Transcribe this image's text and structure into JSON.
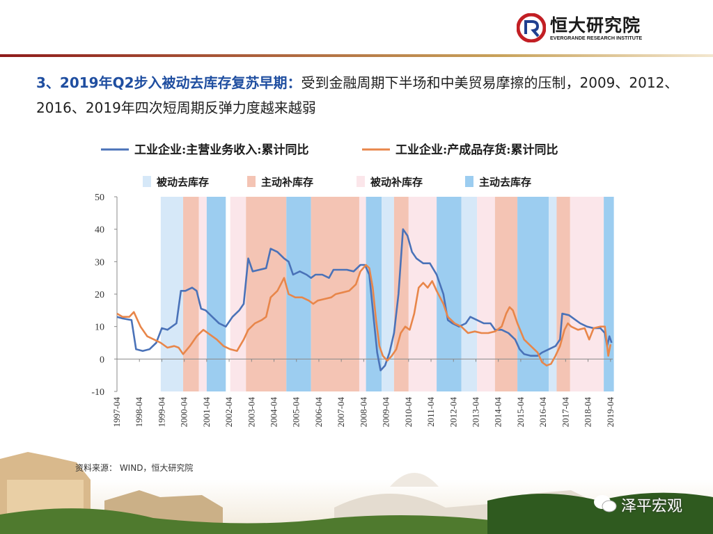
{
  "header": {
    "logo_text": "恒大研究院",
    "logo_subtitle": "EVERGRANDE RESEARCH INSTITUTE"
  },
  "headline": {
    "highlight": "3、2019年Q2步入被动去库存复苏早期：",
    "text": "受到金融周期下半场和中美贸易摩擦的压制，2009、2012、2016、2019年四次短周期反弹力度越来越弱"
  },
  "colors": {
    "series_revenue": "#4a72b8",
    "series_inventory": "#e8864a",
    "passive_destock": "#d6e8f8",
    "active_restock": "#f4c4b4",
    "passive_restock": "#fbe6ea",
    "active_destock": "#9ccdf0"
  },
  "source": "资料来源： WIND，恒大研究院",
  "watermark": "泽平宏观",
  "chart_data": {
    "type": "line",
    "ylim": [
      -10,
      50
    ],
    "yticks": [
      -10,
      0,
      10,
      20,
      30,
      40,
      50
    ],
    "xlim": [
      1997.25,
      2019.35
    ],
    "xticks": [
      "1997-04",
      "1998-04",
      "1999-04",
      "2000-04",
      "2001-04",
      "2002-04",
      "2003-04",
      "2004-04",
      "2005-04",
      "2006-04",
      "2007-04",
      "2008-04",
      "2009-04",
      "2010-04",
      "2011-04",
      "2012-04",
      "2013-04",
      "2014-04",
      "2015-04",
      "2016-04",
      "2017-04",
      "2018-04",
      "2019-04"
    ],
    "series": [
      {
        "name": "工业企业:主营业务收入:累计同比",
        "color_key": "series_revenue",
        "points": [
          [
            1997.25,
            13
          ],
          [
            1997.5,
            12.5
          ],
          [
            1997.9,
            12
          ],
          [
            1998.1,
            3
          ],
          [
            1998.4,
            2.5
          ],
          [
            1998.7,
            3
          ],
          [
            1999.0,
            5
          ],
          [
            1999.25,
            9.5
          ],
          [
            1999.5,
            9
          ],
          [
            1999.9,
            11
          ],
          [
            2000.1,
            21
          ],
          [
            2000.3,
            21
          ],
          [
            2000.6,
            22
          ],
          [
            2000.8,
            21
          ],
          [
            2001.0,
            15.5
          ],
          [
            2001.2,
            15
          ],
          [
            2001.5,
            13
          ],
          [
            2001.8,
            11
          ],
          [
            2002.1,
            10
          ],
          [
            2002.4,
            13
          ],
          [
            2002.7,
            15
          ],
          [
            2002.9,
            17
          ],
          [
            2003.1,
            31
          ],
          [
            2003.3,
            27
          ],
          [
            2003.6,
            27.5
          ],
          [
            2003.9,
            28
          ],
          [
            2004.1,
            34
          ],
          [
            2004.4,
            33
          ],
          [
            2004.7,
            31
          ],
          [
            2004.9,
            30
          ],
          [
            2005.1,
            26
          ],
          [
            2005.4,
            27
          ],
          [
            2005.7,
            26
          ],
          [
            2005.9,
            25
          ],
          [
            2006.1,
            26
          ],
          [
            2006.4,
            26
          ],
          [
            2006.7,
            25
          ],
          [
            2006.9,
            27.5
          ],
          [
            2007.2,
            27.5
          ],
          [
            2007.5,
            27.5
          ],
          [
            2007.8,
            27
          ],
          [
            2008.1,
            29
          ],
          [
            2008.3,
            29
          ],
          [
            2008.5,
            26
          ],
          [
            2008.7,
            12
          ],
          [
            2008.85,
            2
          ],
          [
            2009.0,
            -3.5
          ],
          [
            2009.2,
            -2
          ],
          [
            2009.4,
            2
          ],
          [
            2009.6,
            8
          ],
          [
            2009.8,
            20
          ],
          [
            2010.0,
            40
          ],
          [
            2010.2,
            38
          ],
          [
            2010.4,
            33
          ],
          [
            2010.6,
            31
          ],
          [
            2010.9,
            29.5
          ],
          [
            2011.2,
            29.5
          ],
          [
            2011.5,
            26
          ],
          [
            2011.8,
            20
          ],
          [
            2012.0,
            12
          ],
          [
            2012.2,
            11
          ],
          [
            2012.5,
            10
          ],
          [
            2012.8,
            11
          ],
          [
            2013.0,
            13
          ],
          [
            2013.3,
            12
          ],
          [
            2013.6,
            11
          ],
          [
            2013.9,
            11
          ],
          [
            2014.1,
            9
          ],
          [
            2014.4,
            9
          ],
          [
            2014.7,
            8
          ],
          [
            2015.0,
            6
          ],
          [
            2015.2,
            3
          ],
          [
            2015.4,
            1.5
          ],
          [
            2015.7,
            1
          ],
          [
            2016.0,
            1
          ],
          [
            2016.2,
            2
          ],
          [
            2016.5,
            3
          ],
          [
            2016.8,
            4
          ],
          [
            2017.0,
            6
          ],
          [
            2017.1,
            14
          ],
          [
            2017.4,
            13.5
          ],
          [
            2017.7,
            12
          ],
          [
            2017.9,
            11
          ],
          [
            2018.2,
            10
          ],
          [
            2018.5,
            9.5
          ],
          [
            2018.8,
            9.5
          ],
          [
            2019.0,
            8
          ],
          [
            2019.1,
            4
          ],
          [
            2019.2,
            7
          ],
          [
            2019.3,
            5
          ]
        ]
      },
      {
        "name": "工业企业:产成品存货:累计同比",
        "color_key": "series_inventory",
        "points": [
          [
            1997.25,
            14
          ],
          [
            1997.5,
            13
          ],
          [
            1997.8,
            13
          ],
          [
            1998.0,
            14.5
          ],
          [
            1998.3,
            10
          ],
          [
            1998.6,
            7
          ],
          [
            1998.9,
            6
          ],
          [
            1999.2,
            5
          ],
          [
            1999.5,
            3.5
          ],
          [
            1999.8,
            4
          ],
          [
            2000.0,
            3.5
          ],
          [
            2000.2,
            1.5
          ],
          [
            2000.5,
            4
          ],
          [
            2000.8,
            7
          ],
          [
            2001.1,
            9
          ],
          [
            2001.4,
            7.5
          ],
          [
            2001.7,
            6
          ],
          [
            2002.0,
            4
          ],
          [
            2002.3,
            3
          ],
          [
            2002.6,
            2.5
          ],
          [
            2002.9,
            6
          ],
          [
            2003.1,
            9
          ],
          [
            2003.4,
            11
          ],
          [
            2003.7,
            12
          ],
          [
            2003.9,
            13
          ],
          [
            2004.1,
            19
          ],
          [
            2004.4,
            21
          ],
          [
            2004.7,
            25
          ],
          [
            2004.9,
            20
          ],
          [
            2005.2,
            19
          ],
          [
            2005.5,
            19
          ],
          [
            2005.8,
            18
          ],
          [
            2006.0,
            17
          ],
          [
            2006.2,
            18
          ],
          [
            2006.5,
            18.5
          ],
          [
            2006.8,
            19
          ],
          [
            2007.0,
            20
          ],
          [
            2007.3,
            20.5
          ],
          [
            2007.6,
            21
          ],
          [
            2007.9,
            23
          ],
          [
            2008.1,
            27
          ],
          [
            2008.35,
            29
          ],
          [
            2008.5,
            28
          ],
          [
            2008.65,
            22
          ],
          [
            2008.8,
            12
          ],
          [
            2008.95,
            4
          ],
          [
            2009.1,
            1
          ],
          [
            2009.3,
            -0.5
          ],
          [
            2009.5,
            1
          ],
          [
            2009.7,
            3
          ],
          [
            2009.9,
            8
          ],
          [
            2010.1,
            10
          ],
          [
            2010.3,
            9
          ],
          [
            2010.5,
            14
          ],
          [
            2010.7,
            22
          ],
          [
            2010.9,
            23.5
          ],
          [
            2011.1,
            22
          ],
          [
            2011.3,
            24
          ],
          [
            2011.5,
            21
          ],
          [
            2011.8,
            17
          ],
          [
            2012.0,
            13
          ],
          [
            2012.3,
            11
          ],
          [
            2012.6,
            10
          ],
          [
            2012.9,
            8
          ],
          [
            2013.2,
            8.5
          ],
          [
            2013.5,
            8
          ],
          [
            2013.8,
            8
          ],
          [
            2014.1,
            8.5
          ],
          [
            2014.4,
            10
          ],
          [
            2014.6,
            14
          ],
          [
            2014.75,
            16
          ],
          [
            2014.9,
            15
          ],
          [
            2015.1,
            11
          ],
          [
            2015.4,
            6
          ],
          [
            2015.7,
            4
          ],
          [
            2016.0,
            2
          ],
          [
            2016.2,
            -1
          ],
          [
            2016.4,
            -2
          ],
          [
            2016.6,
            -1.5
          ],
          [
            2016.8,
            1
          ],
          [
            2017.0,
            4
          ],
          [
            2017.2,
            9
          ],
          [
            2017.35,
            11
          ],
          [
            2017.5,
            10
          ],
          [
            2017.8,
            9
          ],
          [
            2018.1,
            9.5
          ],
          [
            2018.3,
            6
          ],
          [
            2018.5,
            9.5
          ],
          [
            2018.8,
            10
          ],
          [
            2019.0,
            10
          ],
          [
            2019.15,
            1
          ],
          [
            2019.25,
            4.5
          ]
        ]
      }
    ],
    "phases": [
      {
        "name": "被动去库存",
        "color_key": "passive_destock"
      },
      {
        "name": "主动补库存",
        "color_key": "active_restock"
      },
      {
        "name": "被动补库存",
        "color_key": "passive_restock"
      },
      {
        "name": "主动去库存",
        "color_key": "active_destock"
      }
    ],
    "bands": [
      [
        1999.2,
        2000.2,
        0
      ],
      [
        2000.2,
        2000.9,
        1
      ],
      [
        2000.9,
        2001.25,
        2
      ],
      [
        2001.25,
        2002.1,
        3
      ],
      [
        2002.3,
        2003.0,
        2
      ],
      [
        2003.0,
        2004.8,
        1
      ],
      [
        2004.8,
        2005.9,
        3
      ],
      [
        2005.9,
        2008.05,
        1
      ],
      [
        2008.05,
        2008.35,
        2
      ],
      [
        2008.35,
        2009.05,
        3
      ],
      [
        2009.05,
        2009.6,
        0
      ],
      [
        2009.6,
        2010.25,
        1
      ],
      [
        2010.25,
        2011.5,
        2
      ],
      [
        2011.5,
        2012.6,
        3
      ],
      [
        2012.6,
        2013.3,
        0
      ],
      [
        2013.3,
        2014.1,
        2
      ],
      [
        2014.1,
        2015.1,
        1
      ],
      [
        2015.1,
        2016.5,
        3
      ],
      [
        2016.5,
        2016.85,
        0
      ],
      [
        2016.85,
        2017.45,
        1
      ],
      [
        2017.45,
        2018.95,
        2
      ],
      [
        2018.95,
        2019.4,
        3
      ]
    ]
  }
}
